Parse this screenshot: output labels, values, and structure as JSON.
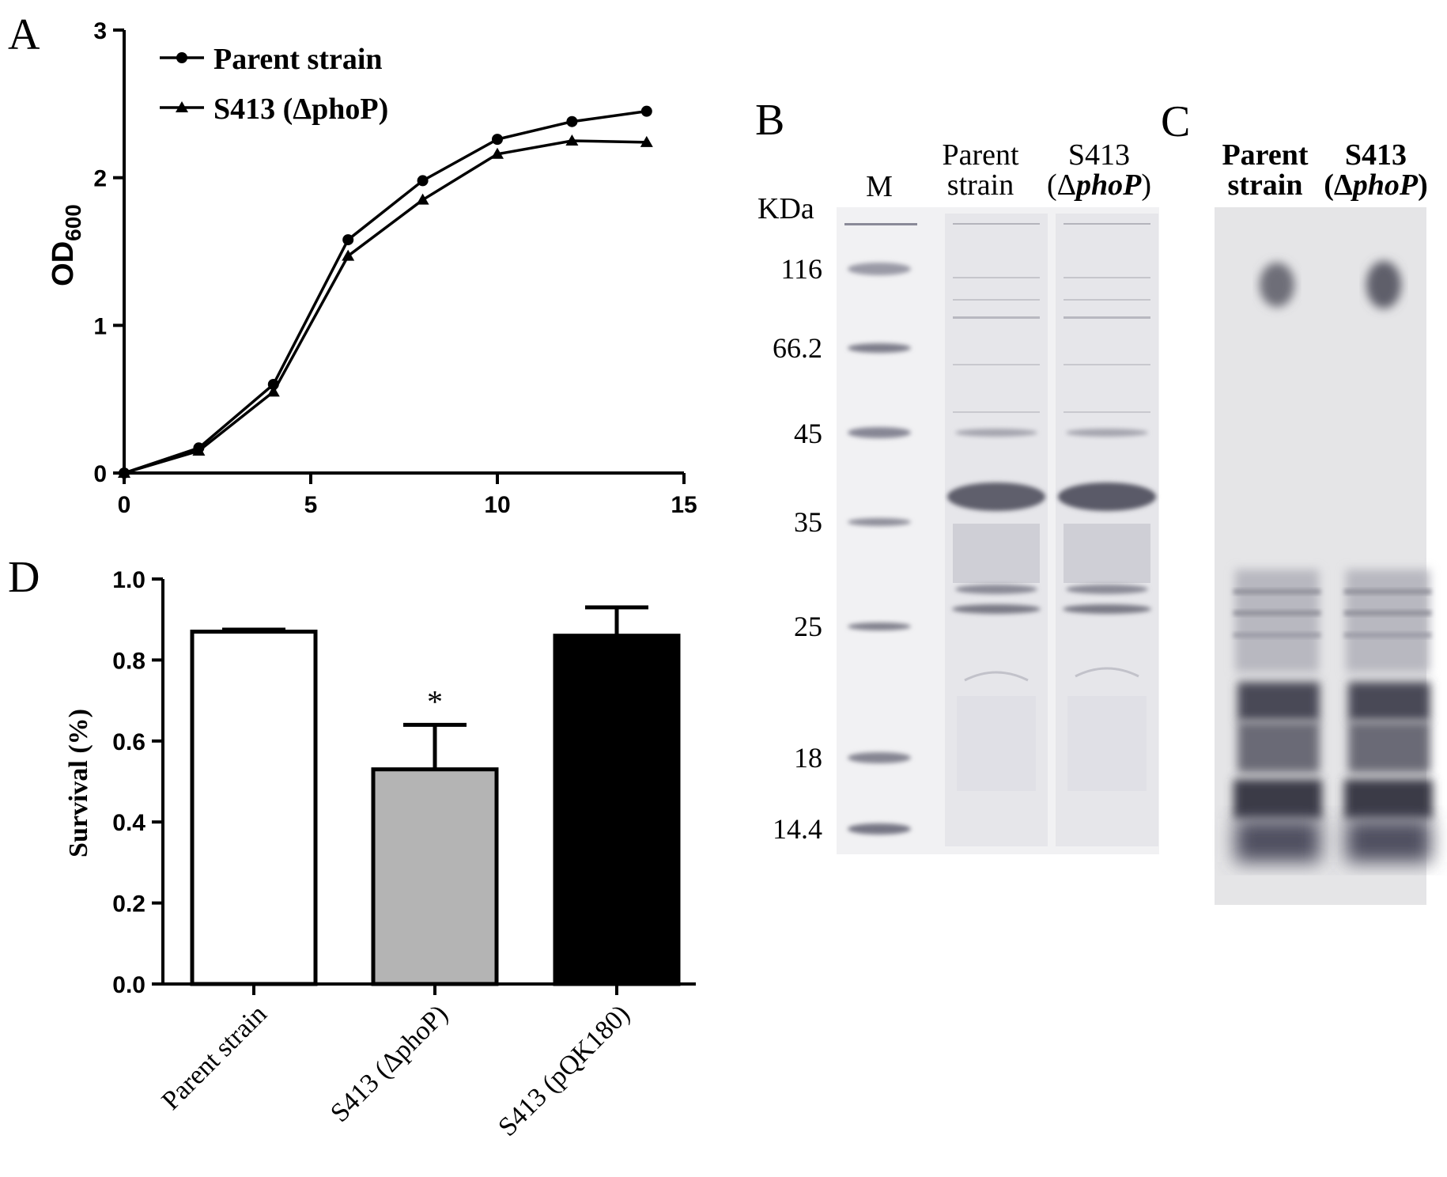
{
  "panels": {
    "A": {
      "letter": "A",
      "ylabel": "OD",
      "ylabel_sub": "600",
      "legend": [
        "Parent strain",
        "S413 (ΔphoP)"
      ]
    },
    "B": {
      "letter": "B",
      "lane_M": "M",
      "kda_label": "KDa",
      "lane1": [
        "Parent",
        "strain"
      ],
      "lane2": [
        "S413",
        "(Δ",
        "phoP",
        ")"
      ],
      "markers": [
        "116",
        "66.2",
        "45",
        "35",
        "25",
        "18",
        "14.4"
      ]
    },
    "C": {
      "letter": "C",
      "lane1": [
        "Parent",
        "strain"
      ],
      "lane2": [
        "S413",
        "(Δ",
        "phoP",
        ")"
      ]
    },
    "D": {
      "letter": "D",
      "ylabel": "Survival (%)",
      "star": "*"
    }
  },
  "chart_data": [
    {
      "type": "line",
      "panel": "A",
      "ylabel": "OD600",
      "xlim": [
        0,
        15
      ],
      "ylim": [
        0,
        3
      ],
      "xticks": [
        "0",
        "5",
        "10",
        "15"
      ],
      "yticks": [
        "0",
        "1",
        "2",
        "3"
      ],
      "x": [
        0,
        2,
        4,
        6,
        8,
        10,
        12,
        14
      ],
      "series": [
        {
          "name": "Parent strain",
          "marker": "circle",
          "values": [
            0.0,
            0.17,
            0.6,
            1.58,
            1.98,
            2.26,
            2.38,
            2.45
          ]
        },
        {
          "name": "S413 (ΔphoP)",
          "marker": "triangle",
          "values": [
            0.0,
            0.15,
            0.55,
            1.47,
            1.85,
            2.16,
            2.25,
            2.24
          ]
        }
      ],
      "legend": "top-left"
    },
    {
      "type": "bar",
      "panel": "D",
      "ylabel": "Survival (%)",
      "ylim": [
        0,
        1.0
      ],
      "yticks": [
        "0.0",
        "0.2",
        "0.4",
        "0.6",
        "0.8",
        "1.0"
      ],
      "categories": [
        "Parent strain",
        "S413 (ΔphoP)",
        "S413 (pQK180)"
      ],
      "values": [
        0.87,
        0.53,
        0.86
      ],
      "errors": [
        0.005,
        0.11,
        0.07
      ],
      "colors": [
        "#ffffff",
        "#b4b4b4",
        "#000000"
      ],
      "annotations": [
        {
          "category": "S413 (ΔphoP)",
          "text": "*"
        }
      ]
    }
  ]
}
